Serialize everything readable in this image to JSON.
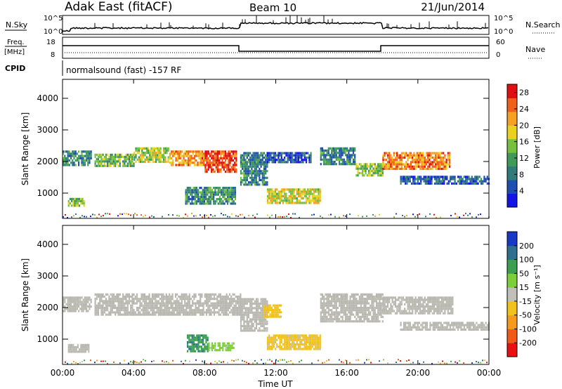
{
  "header": {
    "station": "Adak East (fitACF)",
    "beam": "Beam 10",
    "date": "21/Jun/2014"
  },
  "panels": {
    "nsky": {
      "label": "N.Sky",
      "tick_top": "10^5",
      "tick_bottom": "10^0",
      "right_label": "N.Search",
      "right_tick_top": "10^5",
      "right_tick_bottom": "10^0"
    },
    "freq": {
      "label_1": "Freq.",
      "label_2": "[MHz]",
      "tick_top": "18",
      "tick_bottom": "8",
      "right_label": "Nave",
      "right_tick_top": "60",
      "right_tick_bottom": "0"
    },
    "cpid": {
      "label": "CPID",
      "text": "normalsound (fast) -157 RF"
    }
  },
  "colors": {
    "power_scale": [
      "#1414e6",
      "#1e4fb0",
      "#2f7a7a",
      "#3f9a5a",
      "#76c040",
      "#e8d21e",
      "#f5a020",
      "#f06018",
      "#e01010"
    ],
    "velocity_scale": [
      "#e81010",
      "#f25a14",
      "#f59a1a",
      "#f2c21c",
      "#c0c0b8",
      "#7ccf3a",
      "#3aa050",
      "#2f6f8f",
      "#1838c8"
    ],
    "ground_scatter": "#b8b8b0"
  },
  "chart_data": [
    {
      "type": "heatmap",
      "title": "Power",
      "xlabel": "Time UT",
      "ylabel": "Slant Range [km]",
      "x_ticks": [
        "00:00",
        "04:00",
        "08:00",
        "12:00",
        "16:00",
        "20:00",
        "00:00"
      ],
      "y_ticks": [
        1000,
        2000,
        3000,
        4000
      ],
      "ylim": [
        200,
        4600
      ],
      "xlim_hours": [
        0,
        24
      ],
      "colorbar": {
        "label": "Power [dB]",
        "ticks": [
          4,
          8,
          12,
          16,
          20,
          24,
          28
        ],
        "range": [
          0,
          30
        ]
      },
      "regions": [
        {
          "t": [
            0.0,
            1.6
          ],
          "r": [
            1900,
            2350
          ],
          "v": 10
        },
        {
          "t": [
            0.3,
            1.2
          ],
          "r": [
            600,
            850
          ],
          "v": 15
        },
        {
          "t": [
            1.8,
            4.0
          ],
          "r": [
            1850,
            2250
          ],
          "v": 14
        },
        {
          "t": [
            4.0,
            6.0
          ],
          "r": [
            2000,
            2450
          ],
          "v": 16
        },
        {
          "t": [
            6.0,
            8.0
          ],
          "r": [
            1900,
            2350
          ],
          "v": 22
        },
        {
          "t": [
            8.0,
            9.8
          ],
          "r": [
            1700,
            2350
          ],
          "v": 27
        },
        {
          "t": [
            6.9,
            9.7
          ],
          "r": [
            700,
            1200
          ],
          "v": 10
        },
        {
          "t": [
            10.0,
            11.5
          ],
          "r": [
            1300,
            2300
          ],
          "v": 9
        },
        {
          "t": [
            11.5,
            14.5
          ],
          "r": [
            700,
            1150
          ],
          "v": 18
        },
        {
          "t": [
            11.5,
            14.0
          ],
          "r": [
            1950,
            2300
          ],
          "v": 6
        },
        {
          "t": [
            14.5,
            16.5
          ],
          "r": [
            1950,
            2450
          ],
          "v": 9
        },
        {
          "t": [
            16.5,
            18.0
          ],
          "r": [
            1550,
            1950
          ],
          "v": 15
        },
        {
          "t": [
            18.0,
            21.8
          ],
          "r": [
            1800,
            2300
          ],
          "v": 23
        },
        {
          "t": [
            19.0,
            24.0
          ],
          "r": [
            1300,
            1550
          ],
          "v": 6
        }
      ]
    },
    {
      "type": "heatmap",
      "title": "Velocity",
      "xlabel": "Time UT",
      "ylabel": "Slant Range [km]",
      "x_ticks": [
        "00:00",
        "04:00",
        "08:00",
        "12:00",
        "16:00",
        "20:00",
        "00:00"
      ],
      "y_ticks": [
        1000,
        2000,
        3000,
        4000
      ],
      "ylim": [
        200,
        4600
      ],
      "xlim_hours": [
        0,
        24
      ],
      "colorbar": {
        "label": "Velocity [m s⁻¹]",
        "ticks": [
          200,
          100,
          50,
          15,
          -15,
          -50,
          -100,
          -200
        ],
        "range": [
          -250,
          250
        ]
      },
      "regions": [
        {
          "t": [
            0.0,
            1.6
          ],
          "r": [
            1900,
            2350
          ],
          "v": 0
        },
        {
          "t": [
            0.3,
            1.5
          ],
          "r": [
            600,
            850
          ],
          "v": 0
        },
        {
          "t": [
            1.8,
            10.0
          ],
          "r": [
            1800,
            2450
          ],
          "v": 0
        },
        {
          "t": [
            7.0,
            8.2
          ],
          "r": [
            650,
            1150
          ],
          "v": 130
        },
        {
          "t": [
            8.2,
            9.6
          ],
          "r": [
            650,
            900
          ],
          "v": 40
        },
        {
          "t": [
            10.0,
            11.5
          ],
          "r": [
            1300,
            2300
          ],
          "v": 0
        },
        {
          "t": [
            11.3,
            12.3
          ],
          "r": [
            1700,
            2100
          ],
          "v": -40
        },
        {
          "t": [
            11.5,
            14.5
          ],
          "r": [
            700,
            1150
          ],
          "v": -40
        },
        {
          "t": [
            14.5,
            18.0
          ],
          "r": [
            1550,
            2450
          ],
          "v": 0
        },
        {
          "t": [
            18.0,
            22.0
          ],
          "r": [
            1800,
            2350
          ],
          "v": 0
        },
        {
          "t": [
            19.0,
            24.0
          ],
          "r": [
            1300,
            1550
          ],
          "v": 0
        }
      ]
    }
  ]
}
